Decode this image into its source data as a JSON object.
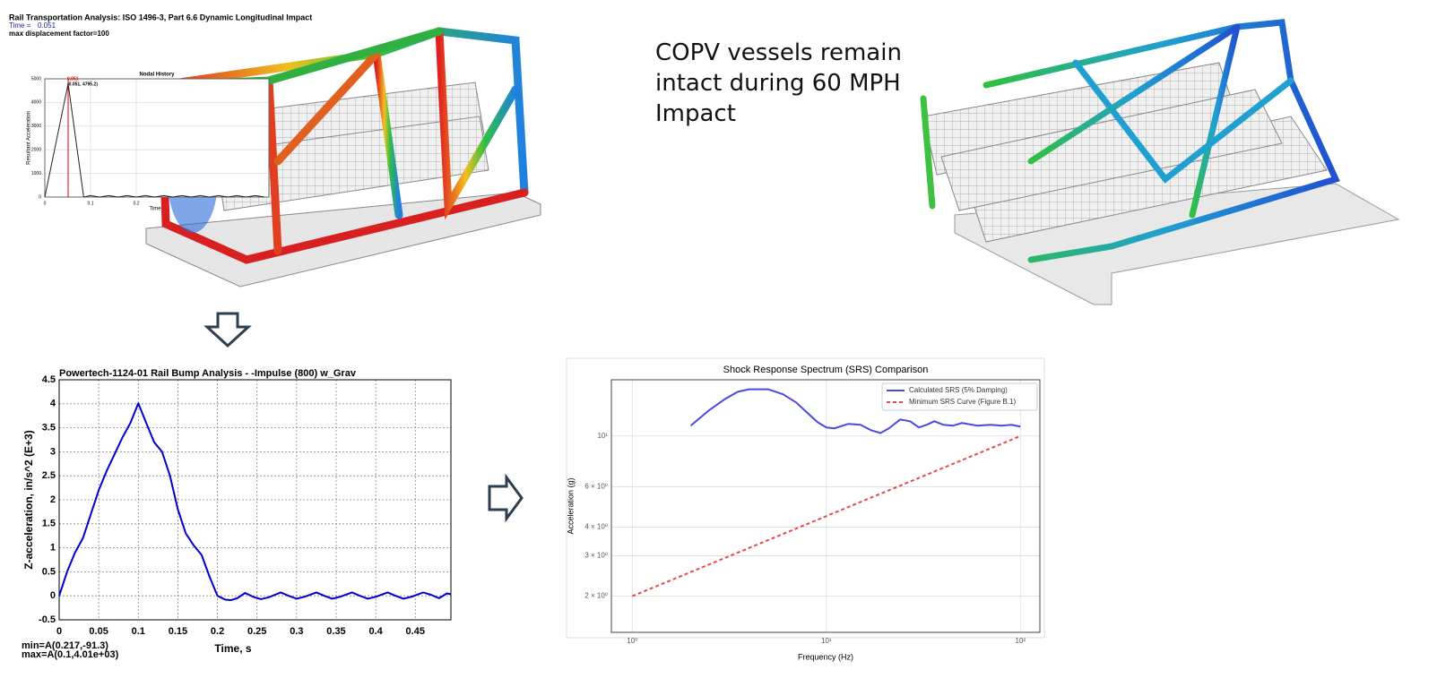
{
  "slide_text": "COPV vessels remain intact during 60 MPH Impact",
  "model_header": {
    "title": "Rail Transportation Analysis: ISO 1496-3, Part 6.6 Dynamic Longitudinal Impact",
    "time_label": "Time =",
    "time_value": "0.051",
    "displacement": "max displacement factor=100"
  },
  "chart_data": [
    {
      "type": "line",
      "title": "Powertech-1124-01 Rail Bump Analysis - -Impulse (800) w_Grav",
      "x_label": "Time, s",
      "y_label": "Z-acceleration, in/s^2 (E+3)",
      "annotations": [
        "min=A(0.217,-91.3)",
        "max=A(0.1,4.01e+03)"
      ],
      "xlim": [
        0,
        0.495
      ],
      "xticks": [
        0,
        0.05,
        0.1,
        0.15,
        0.2,
        0.25,
        0.3,
        0.35,
        0.4,
        0.45
      ],
      "ylim": [
        -0.5,
        4.5
      ],
      "yticks": [
        -0.5,
        0,
        0.5,
        1,
        1.5,
        2,
        2.5,
        3,
        3.5,
        4,
        4.5
      ],
      "grid": true,
      "x": [
        0,
        0.01,
        0.02,
        0.03,
        0.04,
        0.05,
        0.06,
        0.07,
        0.08,
        0.09,
        0.1,
        0.11,
        0.12,
        0.13,
        0.14,
        0.15,
        0.16,
        0.17,
        0.18,
        0.19,
        0.2,
        0.21,
        0.217,
        0.225,
        0.235,
        0.245,
        0.255,
        0.265,
        0.28,
        0.29,
        0.3,
        0.31,
        0.325,
        0.335,
        0.345,
        0.355,
        0.37,
        0.38,
        0.39,
        0.4,
        0.415,
        0.425,
        0.435,
        0.445,
        0.46,
        0.47,
        0.48,
        0.49,
        0.495
      ],
      "series": [
        {
          "color": "#0000cc",
          "values": [
            0,
            0.5,
            0.9,
            1.2,
            1.7,
            2.2,
            2.6,
            2.95,
            3.3,
            3.6,
            4.01,
            3.6,
            3.2,
            3.0,
            2.5,
            1.8,
            1.3,
            1.05,
            0.85,
            0.4,
            0,
            -0.08,
            -0.09,
            -0.05,
            0.06,
            -0.02,
            -0.07,
            -0.03,
            0.07,
            0,
            -0.06,
            -0.02,
            0.07,
            0,
            -0.06,
            -0.02,
            0.07,
            0,
            -0.06,
            -0.02,
            0.07,
            0,
            -0.06,
            -0.02,
            0.07,
            0.02,
            -0.05,
            0.05,
            0.03
          ]
        }
      ]
    },
    {
      "type": "line",
      "title": "Shock Response Spectrum (SRS) Comparison",
      "x_label": "Frequency (Hz)",
      "y_label": "Acceleration (g)",
      "xscale": "log",
      "yscale": "log",
      "grid": true,
      "legend": "upper right",
      "xlim": [
        0.78,
        126
      ],
      "xticks": [
        {
          "value": 1,
          "label": "10⁰"
        },
        {
          "value": 10,
          "label": "10¹"
        },
        {
          "value": 100,
          "label": "10²"
        }
      ],
      "ylim": [
        1.39,
        17.6
      ],
      "yticks": [
        {
          "value": 2,
          "label": "2 × 10⁰"
        },
        {
          "value": 3,
          "label": "3 × 10⁰"
        },
        {
          "value": 4,
          "label": "4 × 10⁰"
        },
        {
          "value": 6,
          "label": "6 × 10⁰"
        },
        {
          "value": 10,
          "label": "10¹"
        }
      ],
      "series": [
        {
          "name": "Calculated SRS (5% Damping)",
          "color": "#4a4ae0",
          "linestyle": "solid",
          "x": [
            2,
            2.5,
            3,
            3.5,
            4,
            5,
            6,
            7,
            8,
            9,
            10,
            11,
            13,
            15,
            17,
            19,
            21,
            24,
            27,
            30,
            33,
            36,
            40,
            45,
            50,
            60,
            70,
            80,
            90,
            100
          ],
          "values": [
            11.1,
            13,
            14.5,
            15.6,
            16,
            16,
            15.2,
            14,
            12.6,
            11.5,
            10.9,
            10.8,
            11.3,
            11.2,
            10.6,
            10.3,
            10.8,
            11.8,
            11.6,
            10.9,
            11.2,
            11.6,
            11.2,
            11.1,
            11.4,
            11.1,
            11.2,
            11.1,
            11.2,
            11
          ]
        },
        {
          "name": "Minimum SRS Curve (Figure B.1)",
          "color": "#e84a4a",
          "linestyle": "dashed",
          "x": [
            1,
            100
          ],
          "values": [
            2,
            10
          ]
        }
      ]
    },
    {
      "type": "line",
      "title": "Nodal History",
      "x_label": "Time",
      "y_label": "Resultant Acceleration",
      "annotations": [
        "0.051",
        "(0.051, 4795.2)"
      ],
      "cursor": 0.051,
      "cursor_color": "#e00000",
      "xlim": [
        0,
        0.49
      ],
      "xticks": [
        0,
        0.1,
        0.2
      ],
      "ylim": [
        0,
        5000
      ],
      "yticks": [
        0,
        1000,
        2000,
        3000,
        4000,
        5000
      ],
      "grid": true,
      "x": [
        0,
        0.051,
        0.085,
        0.1,
        0.12,
        0.14,
        0.16,
        0.18,
        0.2,
        0.22,
        0.24,
        0.26,
        0.28,
        0.3,
        0.32,
        0.34,
        0.36,
        0.38,
        0.4,
        0.42,
        0.44,
        0.46,
        0.48
      ],
      "series": [
        {
          "color": "#222222",
          "values": [
            0,
            4795.2,
            0,
            60,
            0,
            60,
            0,
            60,
            0,
            60,
            0,
            60,
            0,
            60,
            0,
            60,
            0,
            60,
            0,
            60,
            0,
            60,
            0
          ]
        }
      ]
    }
  ]
}
